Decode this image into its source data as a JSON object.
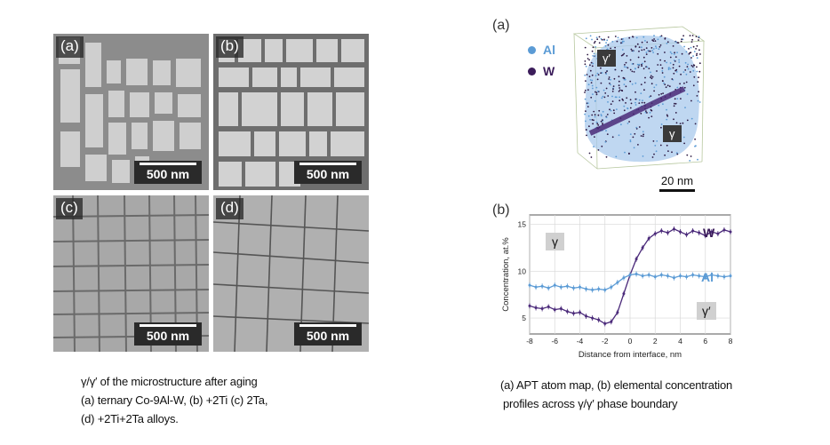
{
  "left_figure": {
    "panels": [
      {
        "label": "(a)",
        "scale": "500 nm"
      },
      {
        "label": "(b)",
        "scale": "500 nm"
      },
      {
        "label": "(c)",
        "scale": "500 nm"
      },
      {
        "label": "(d)",
        "scale": "500 nm"
      }
    ],
    "caption": [
      "γ/γ′ of the microstructure after aging",
      "(a) ternary Co-9Al-W, (b) +2Ti (c) 2Ta,",
      "(d) +2Ti+2Ta alloys."
    ]
  },
  "right_figure": {
    "panel_a": {
      "label": "(a)",
      "legend": [
        {
          "name": "Al",
          "color": "#5b9bd5"
        },
        {
          "name": "W",
          "color": "#3b1c5a"
        }
      ],
      "phase_top": "γ′",
      "phase_bottom": "γ",
      "scale": "20 nm"
    },
    "panel_b": {
      "label": "(b)",
      "phase_left": "γ",
      "phase_right": "γ′"
    },
    "caption": [
      "(a) APT atom map, (b) elemental concentration",
      "profiles across γ/γ′ phase boundary"
    ]
  },
  "chart_data": {
    "type": "line",
    "xlabel": "Distance from interface, nm",
    "ylabel": "Concentration, at.%",
    "xlim": [
      -8,
      8
    ],
    "ylim": [
      3.3,
      16
    ],
    "xticks": [
      -8,
      -6,
      -4,
      -2,
      0,
      2,
      4,
      6,
      8
    ],
    "yticks": [
      5,
      10,
      15
    ],
    "grid": true,
    "series": [
      {
        "name": "W",
        "color": "#4b2a7a",
        "x": [
          -8,
          -7.5,
          -7,
          -6.5,
          -6,
          -5.5,
          -5,
          -4.5,
          -4,
          -3.5,
          -3,
          -2.5,
          -2,
          -1.5,
          -1,
          -0.5,
          0,
          0.5,
          1,
          1.5,
          2,
          2.5,
          3,
          3.5,
          4,
          4.5,
          5,
          5.5,
          6,
          6.5,
          7,
          7.5,
          8
        ],
        "y": [
          6.3,
          6.1,
          6.0,
          6.2,
          5.9,
          6.0,
          5.7,
          5.5,
          5.6,
          5.2,
          5.0,
          4.8,
          4.4,
          4.6,
          5.6,
          7.6,
          9.6,
          11.3,
          12.5,
          13.5,
          14.0,
          14.3,
          14.1,
          14.5,
          14.2,
          13.9,
          14.3,
          14.1,
          13.8,
          14.2,
          14.0,
          14.4,
          14.2
        ]
      },
      {
        "name": "Al",
        "color": "#5b9bd5",
        "x": [
          -8,
          -7.5,
          -7,
          -6.5,
          -6,
          -5.5,
          -5,
          -4.5,
          -4,
          -3.5,
          -3,
          -2.5,
          -2,
          -1.5,
          -1,
          -0.5,
          0,
          0.5,
          1,
          1.5,
          2,
          2.5,
          3,
          3.5,
          4,
          4.5,
          5,
          5.5,
          6,
          6.5,
          7,
          7.5,
          8
        ],
        "y": [
          8.5,
          8.3,
          8.4,
          8.2,
          8.5,
          8.3,
          8.4,
          8.2,
          8.3,
          8.1,
          8.0,
          8.1,
          8.0,
          8.3,
          8.8,
          9.3,
          9.6,
          9.7,
          9.5,
          9.6,
          9.4,
          9.6,
          9.5,
          9.3,
          9.5,
          9.4,
          9.6,
          9.5,
          9.4,
          9.6,
          9.5,
          9.4,
          9.5
        ]
      }
    ]
  }
}
